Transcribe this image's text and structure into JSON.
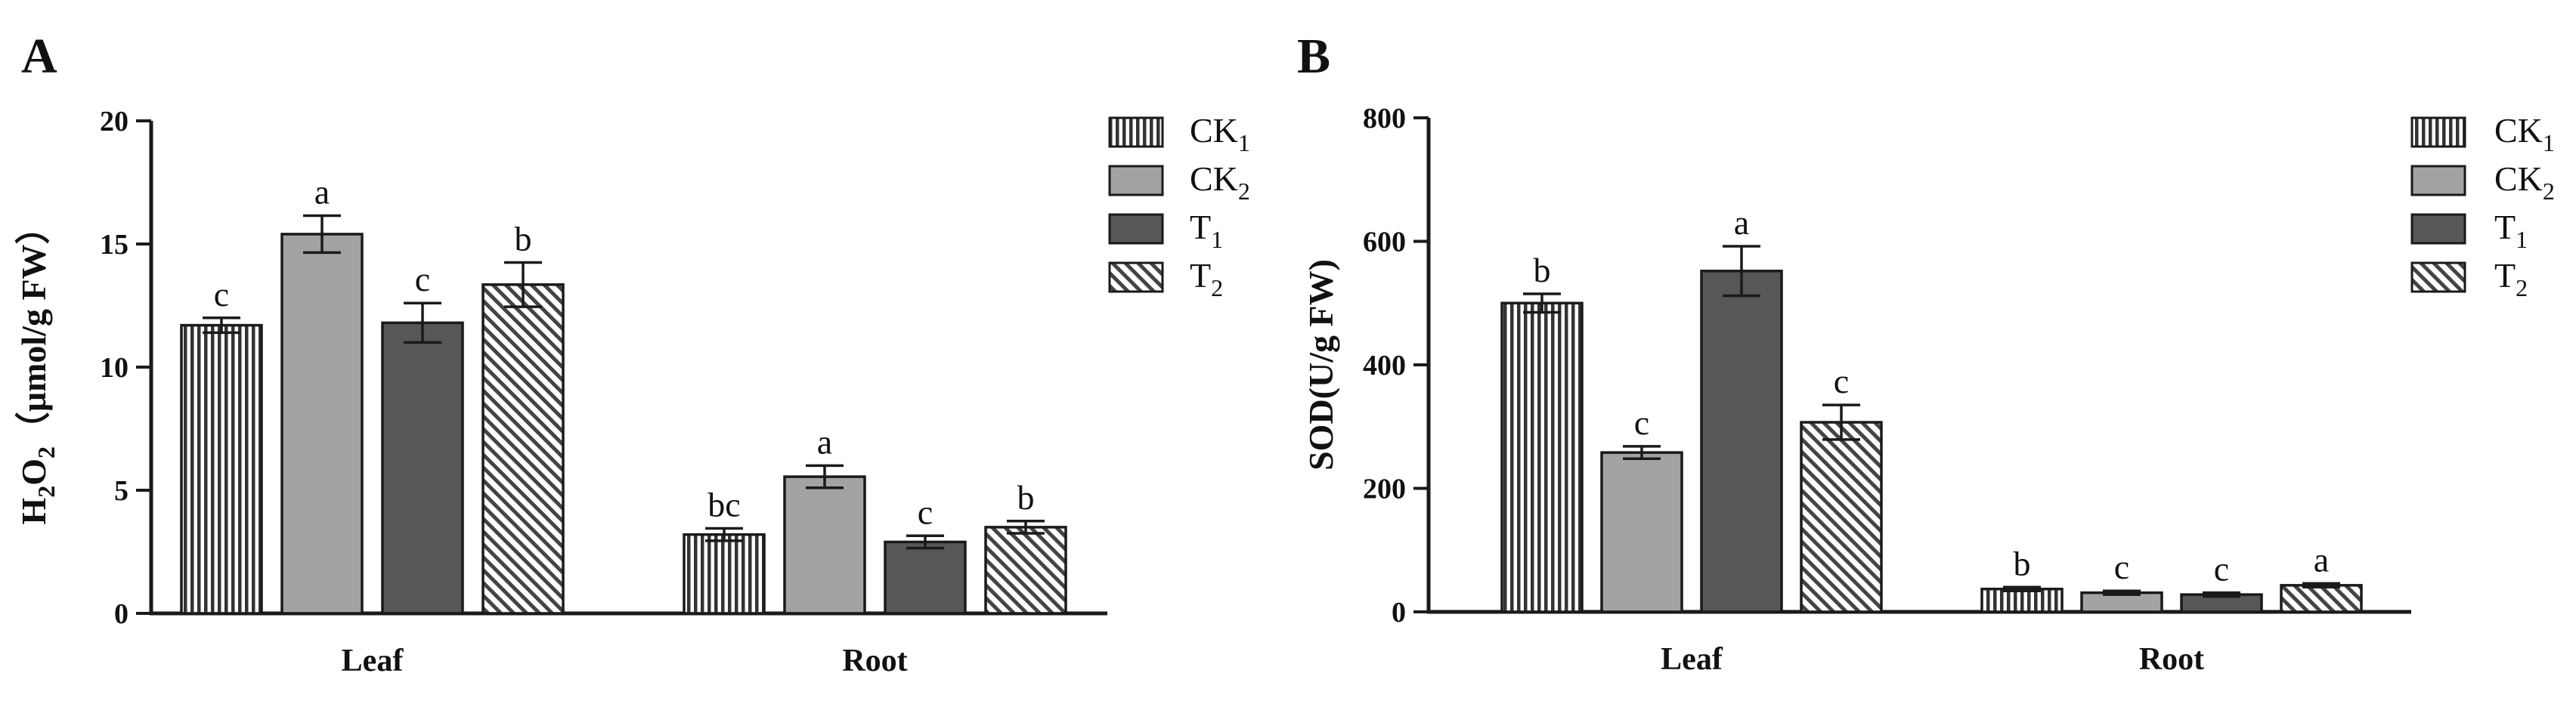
{
  "chart_data": [
    {
      "panel_label": "A",
      "type": "bar",
      "categories": [
        "Leaf",
        "Root"
      ],
      "ylabel_parts": [
        "H",
        "2",
        "O",
        "2",
        "（μmol/g FW）"
      ],
      "ylim": [
        0,
        20
      ],
      "yticks": [
        0,
        5,
        10,
        15,
        20
      ],
      "series": [
        {
          "name_base": "CK",
          "name_sub": "1",
          "pattern": "vlines",
          "values": [
            11.7,
            3.2
          ],
          "errors": [
            0.3,
            0.25
          ],
          "letters": [
            "c",
            "bc"
          ]
        },
        {
          "name_base": "CK",
          "name_sub": "2",
          "pattern": "lightgray",
          "values": [
            15.4,
            5.55
          ],
          "errors": [
            0.75,
            0.45
          ],
          "letters": [
            "a",
            "a"
          ]
        },
        {
          "name_base": "T",
          "name_sub": "1",
          "pattern": "darkgray",
          "values": [
            11.8,
            2.9
          ],
          "errors": [
            0.8,
            0.25
          ],
          "letters": [
            "c",
            "c"
          ]
        },
        {
          "name_base": "T",
          "name_sub": "2",
          "pattern": "diag",
          "values": [
            13.35,
            3.5
          ],
          "errors": [
            0.9,
            0.25
          ],
          "letters": [
            "b",
            "b"
          ]
        }
      ]
    },
    {
      "panel_label": "B",
      "type": "bar",
      "categories": [
        "Leaf",
        "Root"
      ],
      "ylabel_parts": [
        "SOD(U/g FW)"
      ],
      "ylim": [
        0,
        800
      ],
      "yticks": [
        0,
        200,
        400,
        600,
        800
      ],
      "series": [
        {
          "name_base": "CK",
          "name_sub": "1",
          "pattern": "vlines",
          "values": [
            500,
            37
          ],
          "errors": [
            15,
            3
          ],
          "letters": [
            "b",
            "b"
          ]
        },
        {
          "name_base": "CK",
          "name_sub": "2",
          "pattern": "lightgray",
          "values": [
            258,
            31
          ],
          "errors": [
            10,
            3
          ],
          "letters": [
            "c",
            "c"
          ]
        },
        {
          "name_base": "T",
          "name_sub": "1",
          "pattern": "darkgray",
          "values": [
            552,
            28
          ],
          "errors": [
            40,
            3
          ],
          "letters": [
            "a",
            "c"
          ]
        },
        {
          "name_base": "T",
          "name_sub": "2",
          "pattern": "diag",
          "values": [
            307,
            43
          ],
          "errors": [
            28,
            3
          ],
          "letters": [
            "c",
            "a"
          ]
        }
      ]
    }
  ],
  "colors": {
    "light_gray": "#a3a3a3",
    "dark_gray": "#575757",
    "stroke": "#1a1a1a",
    "text": "#111111"
  }
}
